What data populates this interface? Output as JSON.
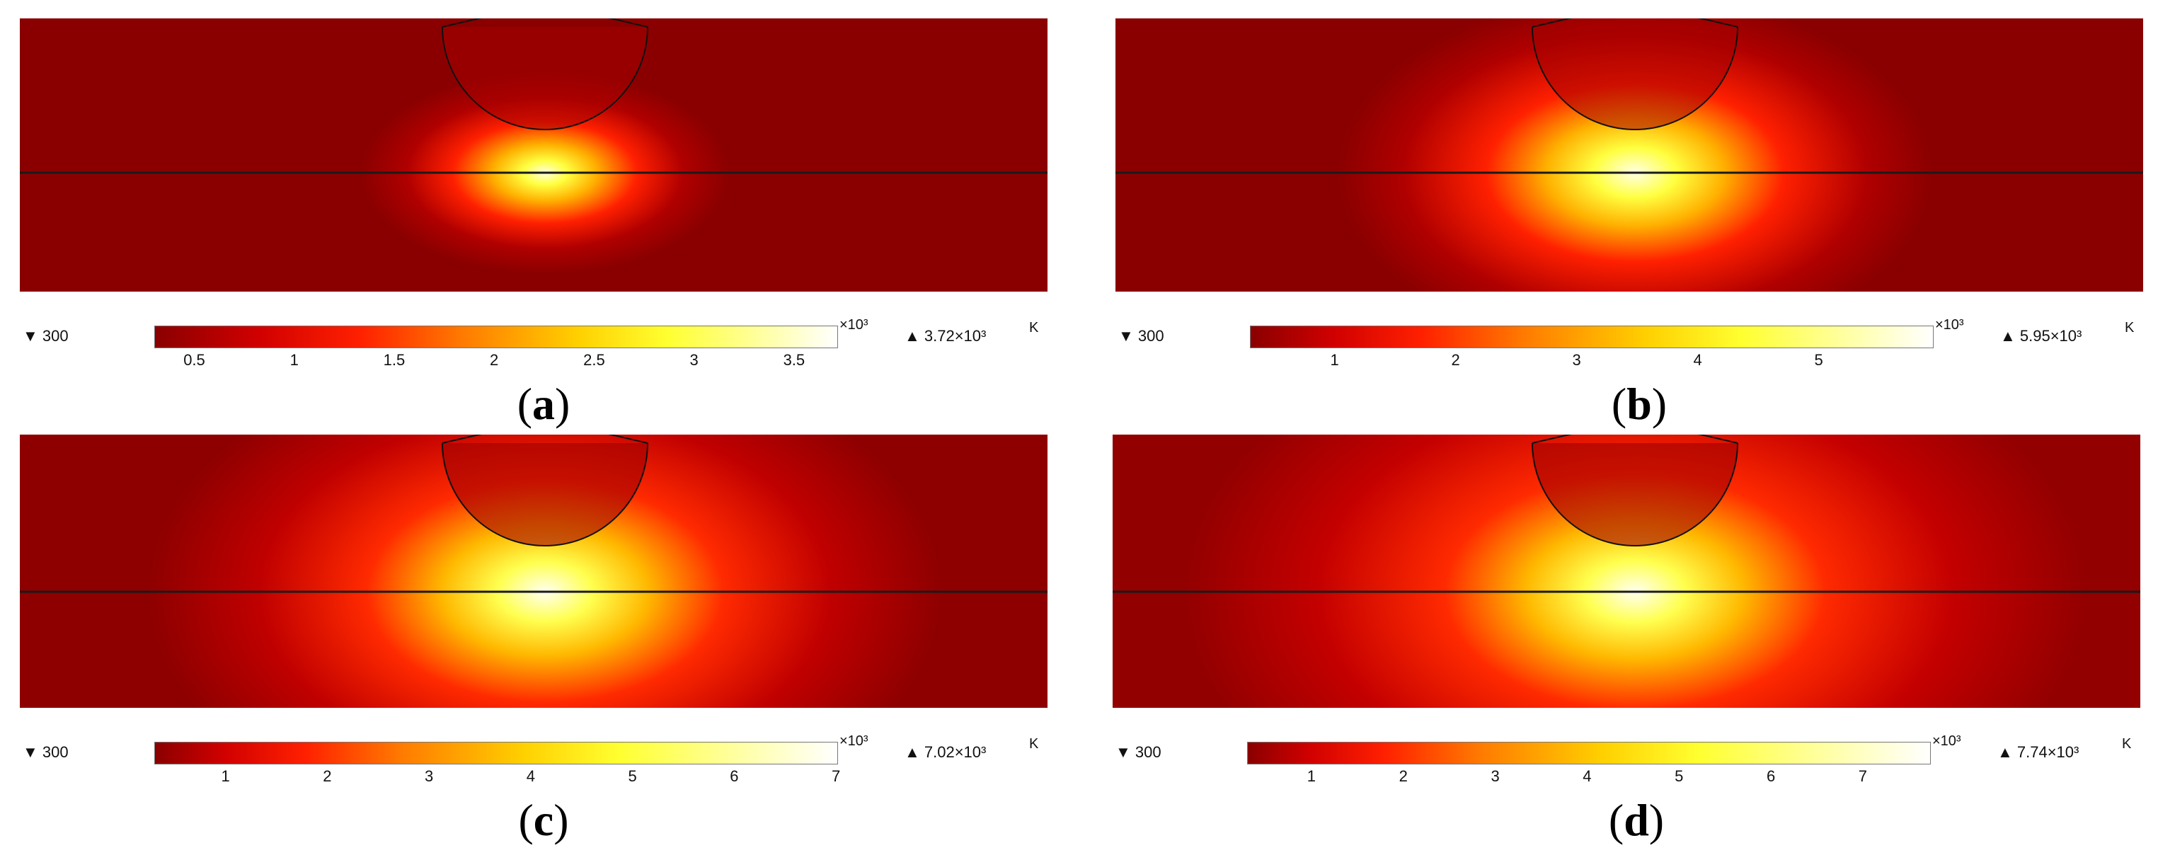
{
  "panels": [
    {
      "caption_letter": "a",
      "min_label": "▼ 300",
      "max_label": "▲ 3.72×10³",
      "unit": "K",
      "exponent": "×10³",
      "ticks": [
        "0.5",
        "1",
        "1.5",
        "2",
        "2.5",
        "3",
        "3.5"
      ],
      "tick_values": [
        0.5,
        1,
        1.5,
        2,
        2.5,
        3,
        3.5
      ],
      "range": [
        0.3,
        3.72
      ],
      "spread": 0.55
    },
    {
      "caption_letter": "b",
      "min_label": "▼ 300",
      "max_label": "▲ 5.95×10³",
      "unit": "K",
      "exponent": "×10³",
      "ticks": [
        "1",
        "2",
        "3",
        "4",
        "5"
      ],
      "tick_values": [
        1,
        2,
        3,
        4,
        5
      ],
      "range": [
        0.3,
        5.95
      ],
      "spread": 0.75
    },
    {
      "caption_letter": "c",
      "min_label": "▼ 300",
      "max_label": "▲ 7.02×10³",
      "unit": "K",
      "exponent": "×10³",
      "ticks": [
        "1",
        "2",
        "3",
        "4",
        "5",
        "6",
        "7"
      ],
      "tick_values": [
        1,
        2,
        3,
        4,
        5,
        6,
        7
      ],
      "range": [
        0.3,
        7.02
      ],
      "spread": 0.9
    },
    {
      "caption_letter": "d",
      "min_label": "▼ 300",
      "max_label": "▲ 7.74×10³",
      "unit": "K",
      "exponent": "×10³",
      "ticks": [
        "1",
        "2",
        "3",
        "4",
        "5",
        "6",
        "7"
      ],
      "tick_values": [
        1,
        2,
        3,
        4,
        5,
        6,
        7
      ],
      "range": [
        0.3,
        7.74
      ],
      "spread": 1.0
    }
  ]
}
